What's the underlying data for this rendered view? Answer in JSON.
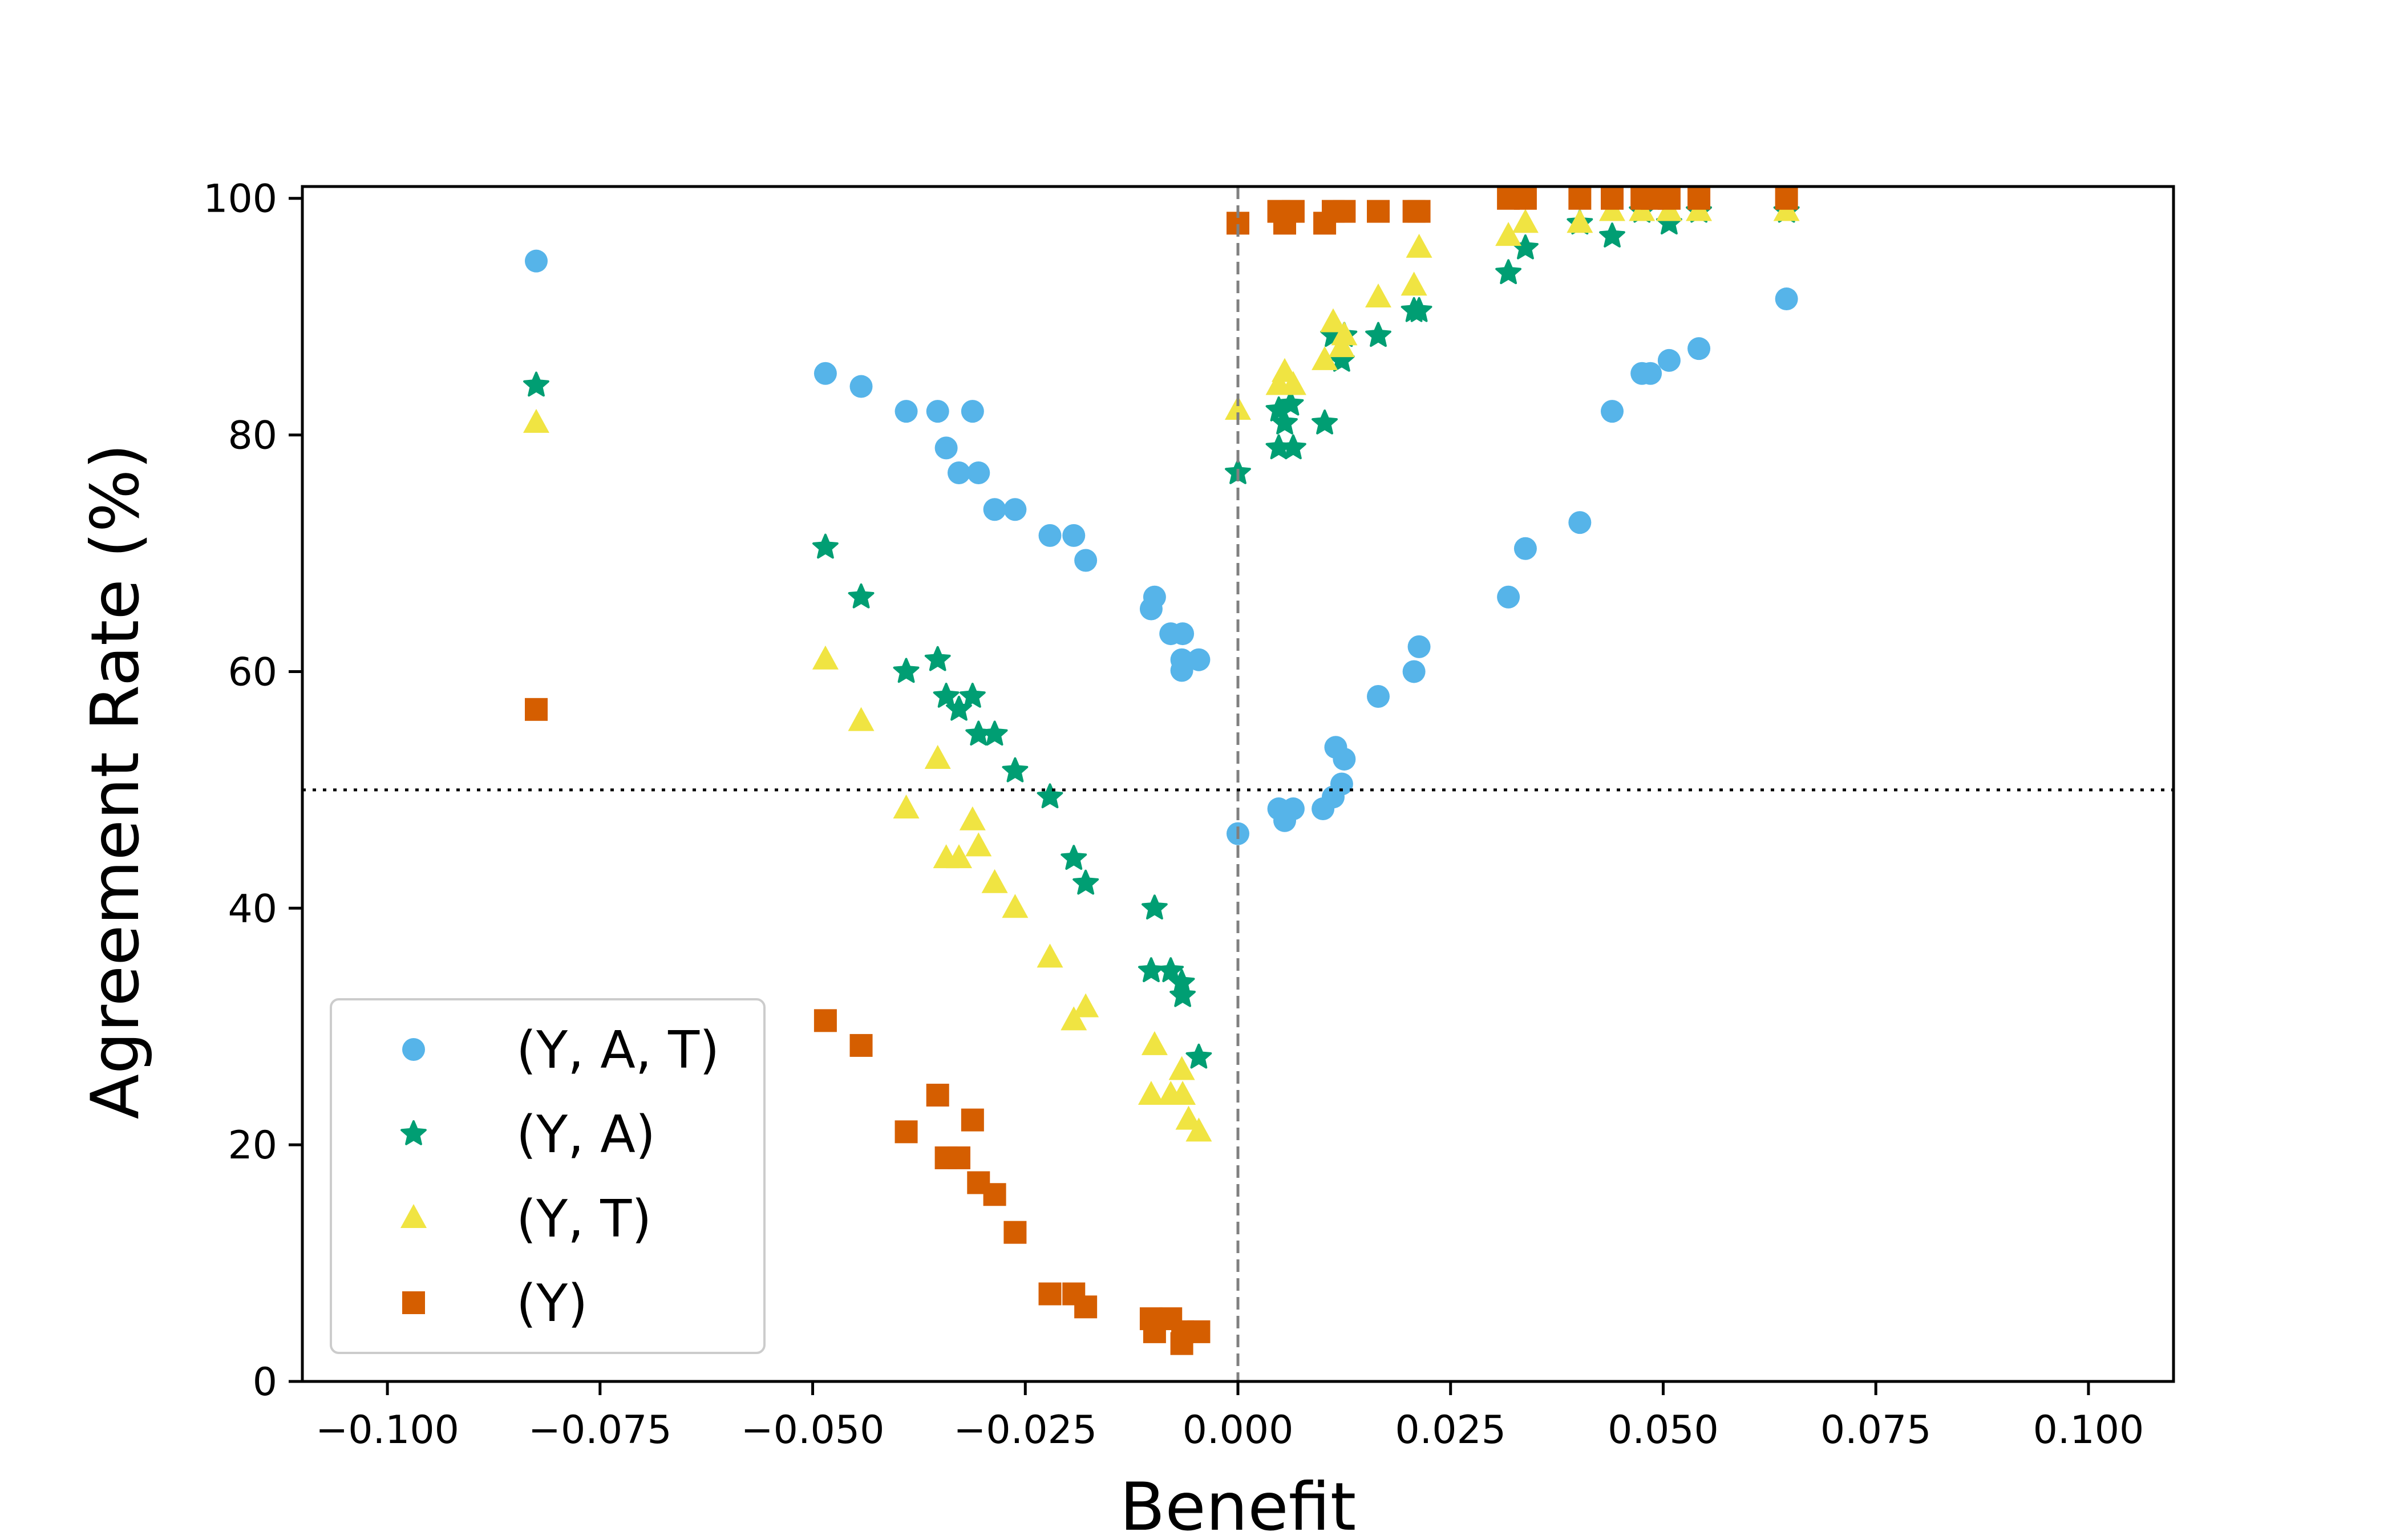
{
  "chart_data": {
    "type": "scatter",
    "title": "",
    "xlabel": "Benefit",
    "ylabel": "Agreement Rate (%)",
    "xlim": [
      -0.11,
      0.11
    ],
    "ylim": [
      0,
      101
    ],
    "xticks": [
      -0.1,
      -0.075,
      -0.05,
      -0.025,
      0.0,
      0.025,
      0.05,
      0.075,
      0.1
    ],
    "xtick_labels": [
      "−0.100",
      "−0.075",
      "−0.050",
      "−0.025",
      "0.000",
      "0.025",
      "0.050",
      "0.075",
      "0.100"
    ],
    "yticks": [
      0,
      20,
      40,
      60,
      80,
      100
    ],
    "ytick_labels": [
      "0",
      "20",
      "40",
      "60",
      "80",
      "100"
    ],
    "reference_lines": {
      "vertical_x": 0.0,
      "horizontal_y": 50
    },
    "legend_position": "lower-left",
    "series": [
      {
        "name": "(Y, A, T)",
        "marker": "circle",
        "color": "#56B4E9",
        "points": [
          [
            -0.0825,
            94.7
          ],
          [
            -0.0485,
            85.2
          ],
          [
            -0.0443,
            84.1
          ],
          [
            -0.039,
            82.0
          ],
          [
            -0.0353,
            82.0
          ],
          [
            -0.0312,
            82.0
          ],
          [
            -0.0343,
            78.9
          ],
          [
            -0.0328,
            76.8
          ],
          [
            -0.0305,
            76.8
          ],
          [
            -0.0286,
            73.7
          ],
          [
            -0.0262,
            73.7
          ],
          [
            -0.0221,
            71.5
          ],
          [
            -0.0193,
            71.5
          ],
          [
            -0.0179,
            69.4
          ],
          [
            -0.0102,
            65.3
          ],
          [
            -0.0098,
            66.3
          ],
          [
            -0.0079,
            63.2
          ],
          [
            -0.0065,
            63.2
          ],
          [
            -0.0066,
            61.0
          ],
          [
            -0.0046,
            61.0
          ],
          [
            -0.0066,
            60.1
          ],
          [
            0.0,
            46.3
          ],
          [
            0.0048,
            48.4
          ],
          [
            0.0055,
            47.4
          ],
          [
            0.0065,
            48.4
          ],
          [
            0.01,
            48.4
          ],
          [
            0.0112,
            49.4
          ],
          [
            0.0122,
            50.5
          ],
          [
            0.0115,
            53.6
          ],
          [
            0.0125,
            52.6
          ],
          [
            0.0165,
            57.9
          ],
          [
            0.0207,
            60.0
          ],
          [
            0.0213,
            62.1
          ],
          [
            0.0318,
            66.3
          ],
          [
            0.0338,
            70.4
          ],
          [
            0.0402,
            72.6
          ],
          [
            0.044,
            82.0
          ],
          [
            0.0475,
            85.2
          ],
          [
            0.0485,
            85.2
          ],
          [
            0.0507,
            86.3
          ],
          [
            0.0542,
            87.3
          ],
          [
            0.0645,
            91.5
          ]
        ]
      },
      {
        "name": "(Y, A)",
        "marker": "star",
        "color": "#009E73",
        "points": [
          [
            -0.0825,
            84.2
          ],
          [
            -0.0485,
            70.5
          ],
          [
            -0.0443,
            66.3
          ],
          [
            -0.039,
            60.0
          ],
          [
            -0.0353,
            61.0
          ],
          [
            -0.0343,
            57.9
          ],
          [
            -0.0328,
            56.8
          ],
          [
            -0.0312,
            57.9
          ],
          [
            -0.0305,
            54.7
          ],
          [
            -0.0286,
            54.7
          ],
          [
            -0.0262,
            51.6
          ],
          [
            -0.0221,
            49.4
          ],
          [
            -0.0193,
            44.2
          ],
          [
            -0.0179,
            42.1
          ],
          [
            -0.0098,
            40.0
          ],
          [
            -0.0102,
            34.7
          ],
          [
            -0.0079,
            34.7
          ],
          [
            -0.0066,
            33.7
          ],
          [
            -0.0065,
            32.6
          ],
          [
            -0.0046,
            27.4
          ],
          [
            0.0,
            76.8
          ],
          [
            0.0048,
            82.1
          ],
          [
            0.0055,
            81.0
          ],
          [
            0.0062,
            82.6
          ],
          [
            0.0048,
            78.9
          ],
          [
            0.0065,
            78.9
          ],
          [
            0.0102,
            81.0
          ],
          [
            0.0112,
            88.4
          ],
          [
            0.0122,
            86.3
          ],
          [
            0.0125,
            88.4
          ],
          [
            0.0165,
            88.4
          ],
          [
            0.0207,
            90.5
          ],
          [
            0.0213,
            90.5
          ],
          [
            0.0318,
            93.7
          ],
          [
            0.0338,
            95.8
          ],
          [
            0.0402,
            97.9
          ],
          [
            0.044,
            96.8
          ],
          [
            0.0475,
            98.9
          ],
          [
            0.0507,
            97.9
          ],
          [
            0.0542,
            98.9
          ],
          [
            0.0645,
            98.9
          ]
        ]
      },
      {
        "name": "(Y, T)",
        "marker": "triangle",
        "color": "#F0E442",
        "points": [
          [
            -0.0825,
            81.0
          ],
          [
            -0.0485,
            61.0
          ],
          [
            -0.0443,
            55.8
          ],
          [
            -0.039,
            48.4
          ],
          [
            -0.0353,
            52.6
          ],
          [
            -0.0343,
            44.2
          ],
          [
            -0.0328,
            44.2
          ],
          [
            -0.0312,
            47.4
          ],
          [
            -0.0305,
            45.2
          ],
          [
            -0.0286,
            42.1
          ],
          [
            -0.0262,
            40.0
          ],
          [
            -0.0221,
            35.8
          ],
          [
            -0.0193,
            30.5
          ],
          [
            -0.0179,
            31.6
          ],
          [
            -0.0098,
            28.4
          ],
          [
            -0.0102,
            24.2
          ],
          [
            -0.0079,
            24.2
          ],
          [
            -0.0066,
            26.3
          ],
          [
            -0.0065,
            24.2
          ],
          [
            -0.0058,
            22.1
          ],
          [
            -0.0046,
            21.1
          ],
          [
            0.0,
            82.1
          ],
          [
            0.0048,
            84.2
          ],
          [
            0.0055,
            85.3
          ],
          [
            0.0065,
            84.2
          ],
          [
            0.0102,
            86.3
          ],
          [
            0.0112,
            89.5
          ],
          [
            0.0122,
            87.4
          ],
          [
            0.0125,
            88.4
          ],
          [
            0.0165,
            91.6
          ],
          [
            0.0207,
            92.6
          ],
          [
            0.0213,
            95.8
          ],
          [
            0.0318,
            96.8
          ],
          [
            0.0338,
            97.9
          ],
          [
            0.0402,
            97.9
          ],
          [
            0.044,
            98.9
          ],
          [
            0.0475,
            98.9
          ],
          [
            0.0507,
            98.9
          ],
          [
            0.0542,
            98.9
          ],
          [
            0.0645,
            98.9
          ]
        ]
      },
      {
        "name": "(Y)",
        "marker": "square",
        "color": "#D55E00",
        "points": [
          [
            -0.0825,
            56.8
          ],
          [
            -0.0485,
            30.5
          ],
          [
            -0.0443,
            28.4
          ],
          [
            -0.039,
            21.1
          ],
          [
            -0.0353,
            24.2
          ],
          [
            -0.0343,
            18.9
          ],
          [
            -0.0328,
            18.9
          ],
          [
            -0.0312,
            22.1
          ],
          [
            -0.0305,
            16.8
          ],
          [
            -0.0286,
            15.8
          ],
          [
            -0.0262,
            12.6
          ],
          [
            -0.0221,
            7.4
          ],
          [
            -0.0193,
            7.4
          ],
          [
            -0.0179,
            6.3
          ],
          [
            -0.0102,
            5.3
          ],
          [
            -0.0098,
            4.2
          ],
          [
            -0.0079,
            5.3
          ],
          [
            -0.0066,
            3.2
          ],
          [
            -0.0065,
            4.2
          ],
          [
            -0.0046,
            4.2
          ],
          [
            0.0,
            97.9
          ],
          [
            0.0048,
            98.9
          ],
          [
            0.0055,
            97.9
          ],
          [
            0.0065,
            98.9
          ],
          [
            0.0102,
            97.9
          ],
          [
            0.0112,
            98.9
          ],
          [
            0.0125,
            98.9
          ],
          [
            0.0165,
            98.9
          ],
          [
            0.0207,
            98.9
          ],
          [
            0.0213,
            98.9
          ],
          [
            0.0318,
            100.0
          ],
          [
            0.0338,
            100.0
          ],
          [
            0.0402,
            100.0
          ],
          [
            0.044,
            100.0
          ],
          [
            0.0475,
            100.0
          ],
          [
            0.0487,
            100.0
          ],
          [
            0.0507,
            100.0
          ],
          [
            0.0542,
            100.0
          ],
          [
            0.0645,
            100.0
          ]
        ]
      }
    ]
  }
}
